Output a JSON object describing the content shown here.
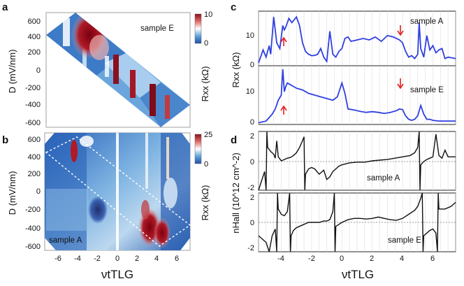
{
  "panels": {
    "a": {
      "label": "a",
      "sample": "sample E",
      "ylabel": "D (mV/nm)",
      "yticks": [
        "600",
        "400",
        "200",
        "0",
        "-200",
        "-400",
        "-600"
      ],
      "colorbar": {
        "label": "Rxx (kΩ)",
        "max": "10",
        "min": "0"
      }
    },
    "b": {
      "label": "b",
      "sample": "sample A",
      "ylabel": "D (mV/nm)",
      "yticks": [
        "600",
        "400",
        "200",
        "0",
        "-200",
        "-400",
        "-600"
      ],
      "xticks": [
        "-6",
        "-4",
        "-2",
        "0",
        "2",
        "4",
        "6"
      ],
      "colorbar": {
        "label": "Rxx (kΩ)",
        "max": "25",
        "min": "0"
      }
    },
    "bottom_left_xlabel": "νtTLG",
    "c": {
      "label": "c",
      "ylabel": "Rxx (kΩ)",
      "top": {
        "sample": "sample A",
        "yticks": [
          "10",
          "0"
        ]
      },
      "bottom": {
        "sample": "sample E",
        "yticks": [
          "10",
          "0"
        ]
      }
    },
    "d": {
      "label": "d",
      "ylabel": "nHall (10^12 cm^-2)",
      "top": {
        "sample": "sample A",
        "yticks": [
          "2",
          "0",
          "-2"
        ]
      },
      "bottom": {
        "sample": "sample E",
        "yticks": [
          "2",
          "0",
          "-2"
        ]
      },
      "xticks": [
        "-4",
        "-2",
        "0",
        "2",
        "4",
        "6"
      ]
    },
    "bottom_right_xlabel": "νtTLG"
  },
  "colors": {
    "trace_blue": "#2f3fe0",
    "arrow_red": "#e02020",
    "hall_black": "#111111"
  },
  "chart_data": [
    {
      "type": "heatmap",
      "panel": "a",
      "title": "sample E",
      "xlabel": "νtTLG",
      "ylabel": "D (mV/nm)",
      "xlim": [
        -7.5,
        7.5
      ],
      "ylim": [
        -680,
        680
      ],
      "colorbar_range": [
        0,
        10
      ],
      "cmap": [
        "#1f4fa8",
        "#ffffff",
        "#8a0f1a"
      ]
    },
    {
      "type": "heatmap",
      "panel": "b",
      "title": "sample A",
      "xlabel": "νtTLG",
      "ylabel": "D (mV/nm)",
      "xlim": [
        -7.5,
        7.5
      ],
      "ylim": [
        -680,
        680
      ],
      "colorbar_range": [
        0,
        25
      ],
      "cmap": [
        "#1f4fa8",
        "#ffffff",
        "#8a0f1a"
      ]
    },
    {
      "type": "line",
      "panel": "c-top",
      "series": [
        {
          "name": "sample A",
          "x": [
            -5.5,
            -5.2,
            -5.0,
            -4.8,
            -4.7,
            -4.5,
            -4.3,
            -4.1,
            -3.9,
            -3.8,
            -3.7,
            -3.5,
            -3.3,
            -3.0,
            -2.8,
            -2.6,
            -2.4,
            -2.2,
            -2.0,
            -1.8,
            -1.6,
            -1.4,
            -1.2,
            -1.0,
            -0.8,
            -0.6,
            -0.4,
            -0.2,
            0.0,
            0.2,
            0.4,
            0.6,
            1.0,
            1.4,
            1.8,
            2.2,
            2.6,
            3.0,
            3.4,
            3.8,
            4.0,
            4.2,
            4.4,
            4.6,
            4.8,
            5.0,
            5.1,
            5.2,
            5.4,
            5.6,
            5.8,
            6.0,
            6.2,
            6.4,
            6.6,
            6.8,
            7.0,
            7.2,
            7.5
          ],
          "y": [
            1.0,
            5.5,
            3.0,
            7.0,
            4.0,
            17.0,
            8.0,
            6.0,
            14.0,
            12.5,
            13.5,
            16.5,
            15.0,
            17.0,
            14.0,
            8.0,
            5.0,
            4.0,
            3.5,
            3.6,
            4.0,
            6.0,
            3.0,
            1.5,
            12.0,
            4.0,
            3.0,
            5.0,
            6.0,
            9.5,
            10.0,
            8.5,
            9.0,
            9.5,
            9.0,
            10.0,
            8.5,
            10.5,
            10.0,
            9.0,
            8.0,
            5.0,
            3.0,
            3.5,
            2.5,
            4.0,
            15.0,
            6.0,
            3.0,
            10.5,
            5.5,
            7.0,
            4.5,
            5.5,
            6.0,
            2.5,
            3.0,
            2.8,
            2.5
          ]
        }
      ],
      "ylabel": "Rxx (kΩ)",
      "xlim": [
        -5.5,
        7.5
      ],
      "ylim": [
        0,
        19
      ],
      "annotations": [
        {
          "type": "arrow-up",
          "x": -3.85,
          "y": 6.0
        },
        {
          "type": "arrow-down",
          "x": 3.95,
          "y": 11.5
        }
      ]
    },
    {
      "type": "line",
      "panel": "c-bottom",
      "series": [
        {
          "name": "sample E",
          "x": [
            -5.5,
            -5.0,
            -4.8,
            -4.6,
            -4.4,
            -4.2,
            -4.0,
            -3.9,
            -3.8,
            -3.7,
            -3.6,
            -3.4,
            -3.2,
            -3.0,
            -2.6,
            -2.2,
            -1.8,
            -1.4,
            -1.0,
            -0.6,
            -0.3,
            0.0,
            0.2,
            0.4,
            0.8,
            1.2,
            1.6,
            2.0,
            2.4,
            2.8,
            3.2,
            3.6,
            3.8,
            4.0,
            4.2,
            4.4,
            4.6,
            4.8,
            5.0,
            5.2,
            5.4,
            5.6,
            5.8,
            6.0,
            6.4,
            6.8,
            7.2,
            7.5
          ],
          "y": [
            0.5,
            1.0,
            2.0,
            3.0,
            4.5,
            7.0,
            8.5,
            16.0,
            9.5,
            11.0,
            12.0,
            11.5,
            11.0,
            10.5,
            10.0,
            9.0,
            8.5,
            8.0,
            7.5,
            7.0,
            8.0,
            12.0,
            9.0,
            4.5,
            4.2,
            3.8,
            3.5,
            3.7,
            3.5,
            3.2,
            3.5,
            4.0,
            4.5,
            4.3,
            2.5,
            1.5,
            1.2,
            1.5,
            2.5,
            5.5,
            3.0,
            1.5,
            1.5,
            1.2,
            1.0,
            1.0,
            1.0,
            1.0
          ]
        }
      ],
      "ylabel": "Rxx (kΩ)",
      "xlim": [
        -5.5,
        7.5
      ],
      "ylim": [
        0,
        17
      ],
      "annotations": [
        {
          "type": "arrow-up",
          "x": -3.85,
          "y": 2.5
        },
        {
          "type": "arrow-down",
          "x": 3.95,
          "y": 7.8
        }
      ]
    },
    {
      "type": "line",
      "panel": "d-top",
      "series": [
        {
          "name": "sample A",
          "x": [
            -5.5,
            -5.3,
            -5.1,
            -5.0,
            -4.95,
            -4.9,
            -4.7,
            -4.5,
            -4.4,
            -4.3,
            -4.2,
            -4.0,
            -3.8,
            -3.6,
            -3.4,
            -3.2,
            -3.0,
            -2.8,
            -2.6,
            -2.5,
            -2.45,
            -2.4,
            -2.2,
            -2.0,
            -1.8,
            -1.5,
            -1.2,
            -1.0,
            -0.8,
            -0.6,
            -0.4,
            -0.2,
            0.0,
            0.5,
            1.0,
            1.5,
            2.0,
            2.5,
            3.0,
            3.5,
            4.0,
            4.5,
            4.8,
            5.0,
            5.1,
            5.15,
            5.2,
            5.4,
            5.6,
            5.8,
            6.0,
            6.2,
            6.4,
            6.6,
            6.8,
            7.0,
            7.2,
            7.5
          ],
          "y": [
            -2.2,
            -1.5,
            -0.8,
            -2.2,
            2.2,
            1.0,
            0.7,
            0.5,
            0.2,
            1.5,
            0.3,
            0.0,
            0.1,
            0.2,
            0.25,
            0.4,
            0.6,
            1.0,
            1.5,
            1.8,
            -2.2,
            -1.0,
            -0.6,
            -0.5,
            -0.6,
            -1.0,
            -0.7,
            -1.4,
            -1.2,
            -0.8,
            -0.6,
            -0.4,
            -0.3,
            -0.15,
            -0.1,
            -0.1,
            0.0,
            0.05,
            0.1,
            0.2,
            0.3,
            0.4,
            0.6,
            1.0,
            2.2,
            -2.2,
            -0.3,
            -0.05,
            0.1,
            0.2,
            0.3,
            2.0,
            0.4,
            0.2,
            0.8,
            0.3,
            0.3,
            0.3
          ]
        }
      ],
      "ylabel": "nHall (10^12 cm^-2)",
      "xlim": [
        -5.5,
        7.5
      ],
      "ylim": [
        -2.2,
        2.2
      ]
    },
    {
      "type": "line",
      "panel": "d-bottom",
      "series": [
        {
          "name": "sample E",
          "x": [
            -5.5,
            -5.0,
            -4.8,
            -4.6,
            -4.4,
            -4.3,
            -4.25,
            -4.2,
            -4.0,
            -3.8,
            -3.6,
            -3.45,
            -3.4,
            -3.35,
            -3.2,
            -3.0,
            -2.8,
            -2.6,
            -2.4,
            -2.2,
            -2.0,
            -1.5,
            -1.2,
            -1.0,
            -0.8,
            -0.6,
            -0.5,
            -0.45,
            -0.4,
            0.0,
            0.4,
            0.8,
            1.2,
            1.6,
            2.0,
            2.4,
            2.8,
            3.2,
            3.6,
            4.0,
            4.4,
            4.8,
            5.0,
            5.2,
            5.3,
            5.35,
            5.4,
            5.6,
            5.8,
            6.0,
            6.2,
            6.3,
            6.35,
            6.4,
            6.8,
            7.2,
            7.5
          ],
          "y": [
            -1.0,
            -1.5,
            -2.2,
            -1.0,
            -0.5,
            -2.2,
            2.2,
            1.0,
            0.6,
            0.5,
            0.8,
            2.2,
            -2.2,
            -1.0,
            -0.6,
            -0.4,
            -0.3,
            -0.2,
            -0.1,
            0.0,
            0.0,
            0.0,
            0.1,
            0.1,
            0.2,
            0.8,
            2.2,
            -2.2,
            -0.3,
            0.0,
            0.2,
            0.3,
            0.3,
            0.25,
            0.3,
            0.4,
            0.3,
            0.2,
            0.15,
            0.3,
            0.6,
            0.9,
            1.2,
            1.8,
            2.2,
            -2.2,
            -1.0,
            -0.8,
            -0.6,
            -0.5,
            -0.8,
            -2.2,
            2.2,
            1.0,
            1.0,
            1.2,
            1.5
          ]
        }
      ],
      "ylabel": "nHall (10^12 cm^-2)",
      "xlabel": "νtTLG",
      "xlim": [
        -5.5,
        7.5
      ],
      "ylim": [
        -2.2,
        2.2
      ]
    }
  ]
}
